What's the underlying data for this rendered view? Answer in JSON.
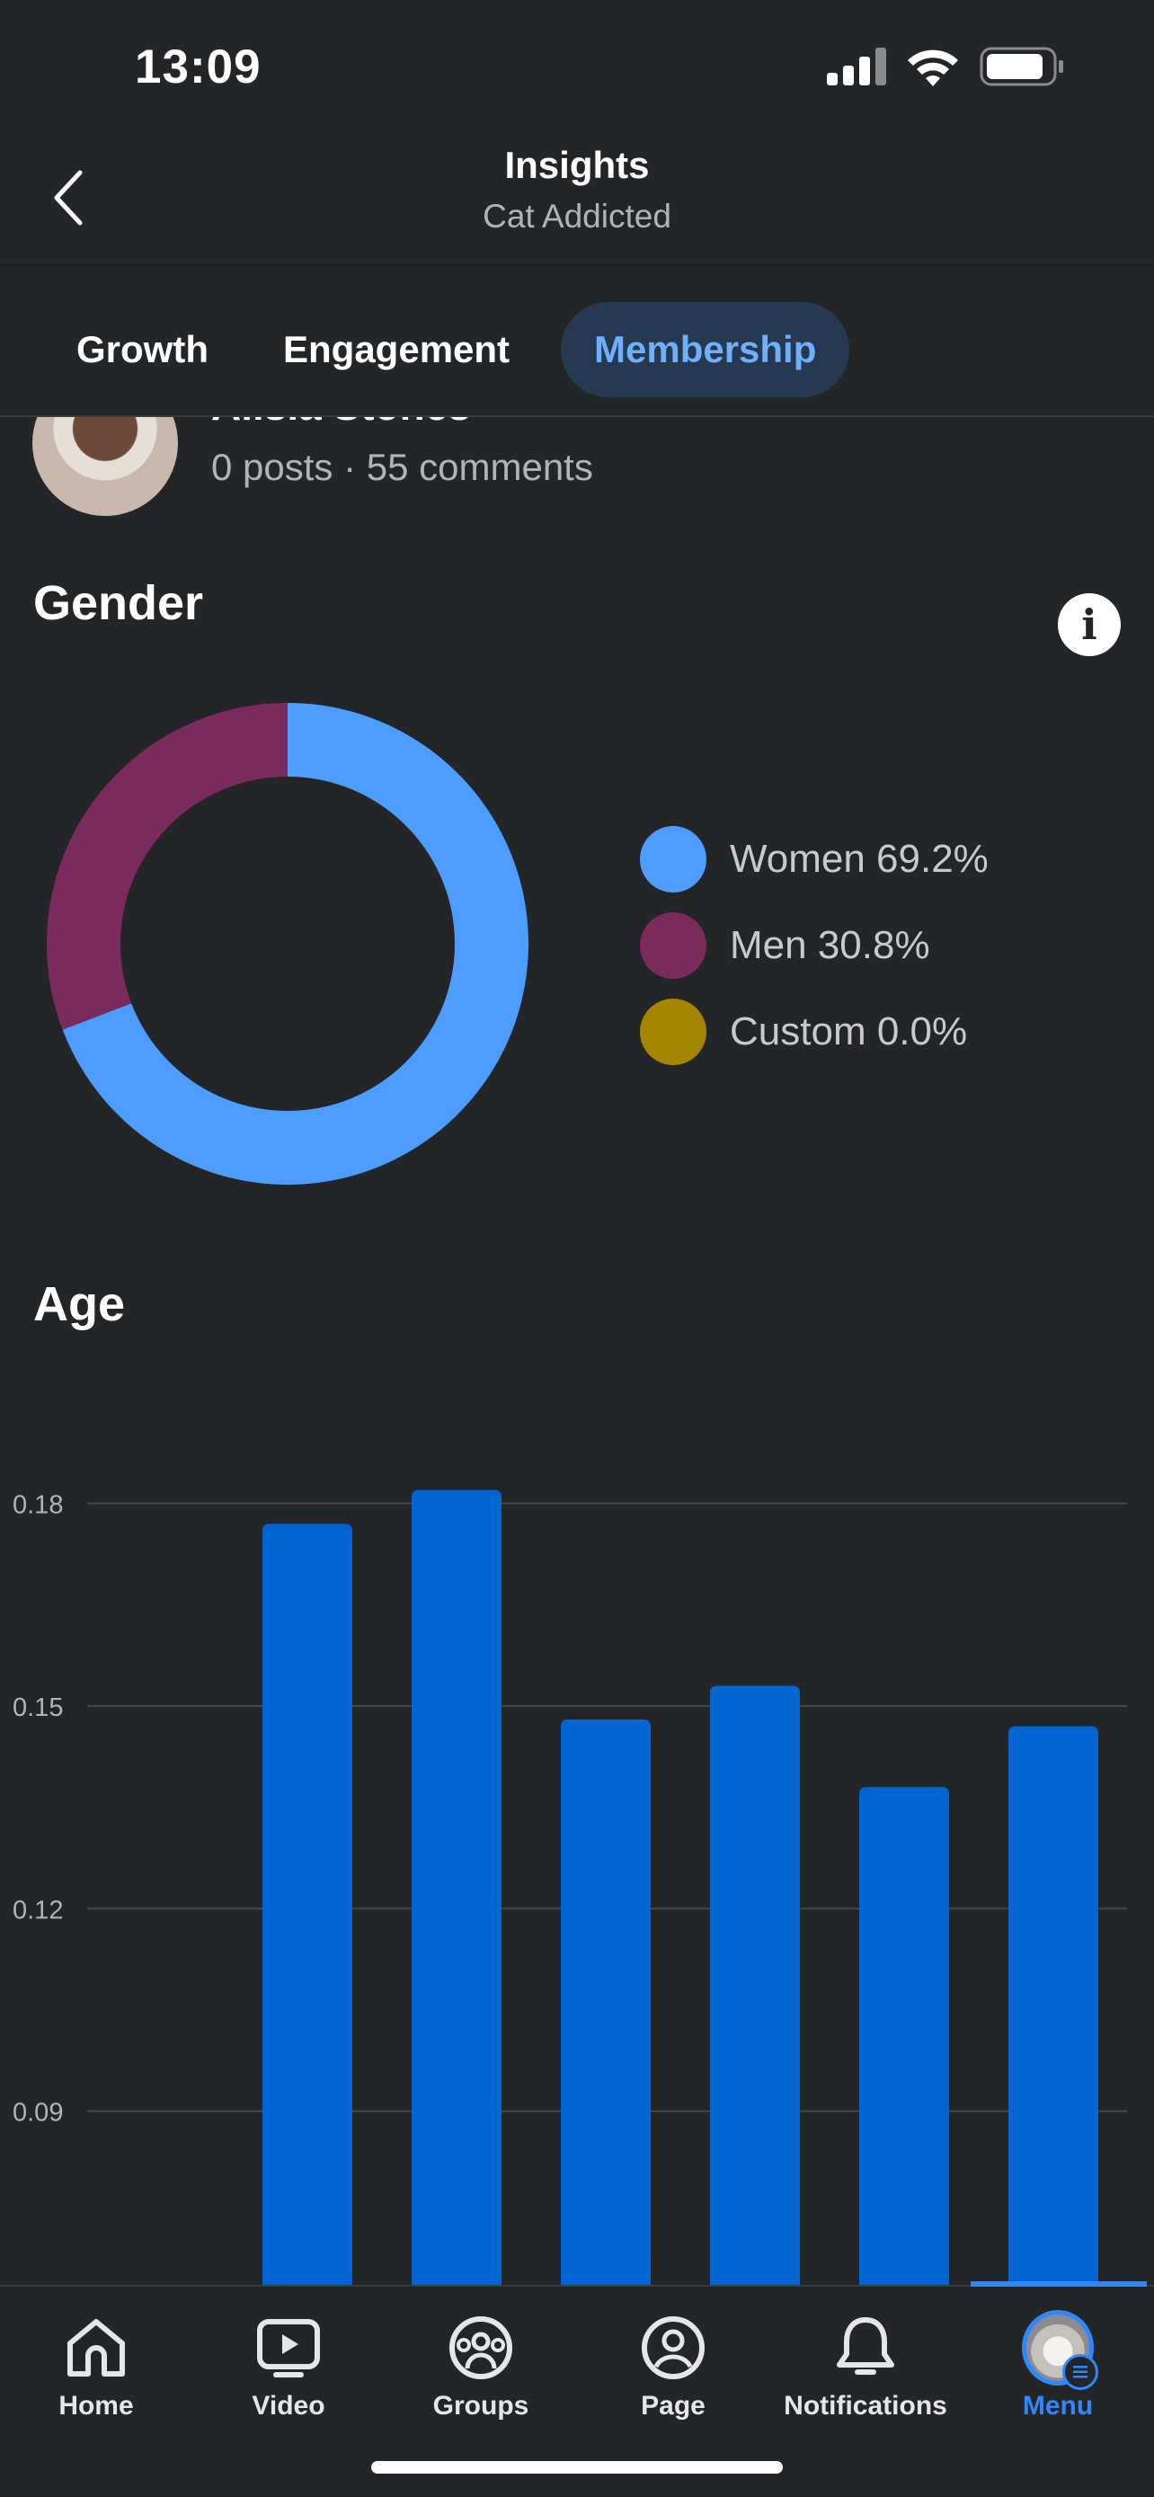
{
  "status_bar": {
    "time": "13:09"
  },
  "header": {
    "title": "Insights",
    "subtitle": "Cat Addicted"
  },
  "tabs": [
    {
      "label": "Growth",
      "active": false
    },
    {
      "label": "Engagement",
      "active": false
    },
    {
      "label": "Membership",
      "active": true
    }
  ],
  "member": {
    "name": "Alisia Stones",
    "stats": "0 posts · 55 comments"
  },
  "gender": {
    "title": "Gender",
    "legend": [
      {
        "label": "Women 69.2%",
        "color": "#4c9dff"
      },
      {
        "label": "Men 30.8%",
        "color": "#7a2b5c"
      },
      {
        "label": "Custom 0.0%",
        "color": "#a58600"
      }
    ]
  },
  "age": {
    "title": "Age"
  },
  "chart_data": [
    {
      "type": "pie",
      "title": "Gender",
      "categories": [
        "Women",
        "Men",
        "Custom"
      ],
      "values": [
        69.2,
        30.8,
        0.0
      ],
      "colors": [
        "#4c9dff",
        "#7a2b5c",
        "#a58600"
      ],
      "donut": true,
      "legend": "right"
    },
    {
      "type": "bar",
      "title": "Age",
      "categories": [
        "",
        "",
        "",
        "",
        "",
        ""
      ],
      "values": [
        0.177,
        0.182,
        0.148,
        0.153,
        0.138,
        0.147
      ],
      "yticks": [
        "0.18",
        "0.15",
        "0.12",
        "0.09"
      ],
      "ytick_values": [
        0.18,
        0.15,
        0.12,
        0.09
      ],
      "ylim": [
        0.064,
        0.195
      ],
      "grid": true,
      "color": "#0064d1"
    }
  ],
  "bottom_nav": [
    {
      "label": "Home",
      "icon": "home-icon",
      "active": false
    },
    {
      "label": "Video",
      "icon": "video-icon",
      "active": false
    },
    {
      "label": "Groups",
      "icon": "groups-icon",
      "active": false
    },
    {
      "label": "Page",
      "icon": "page-icon",
      "active": false
    },
    {
      "label": "Notifications",
      "icon": "bell-icon",
      "active": false
    },
    {
      "label": "Menu",
      "icon": "menu-avatar",
      "active": true
    }
  ]
}
